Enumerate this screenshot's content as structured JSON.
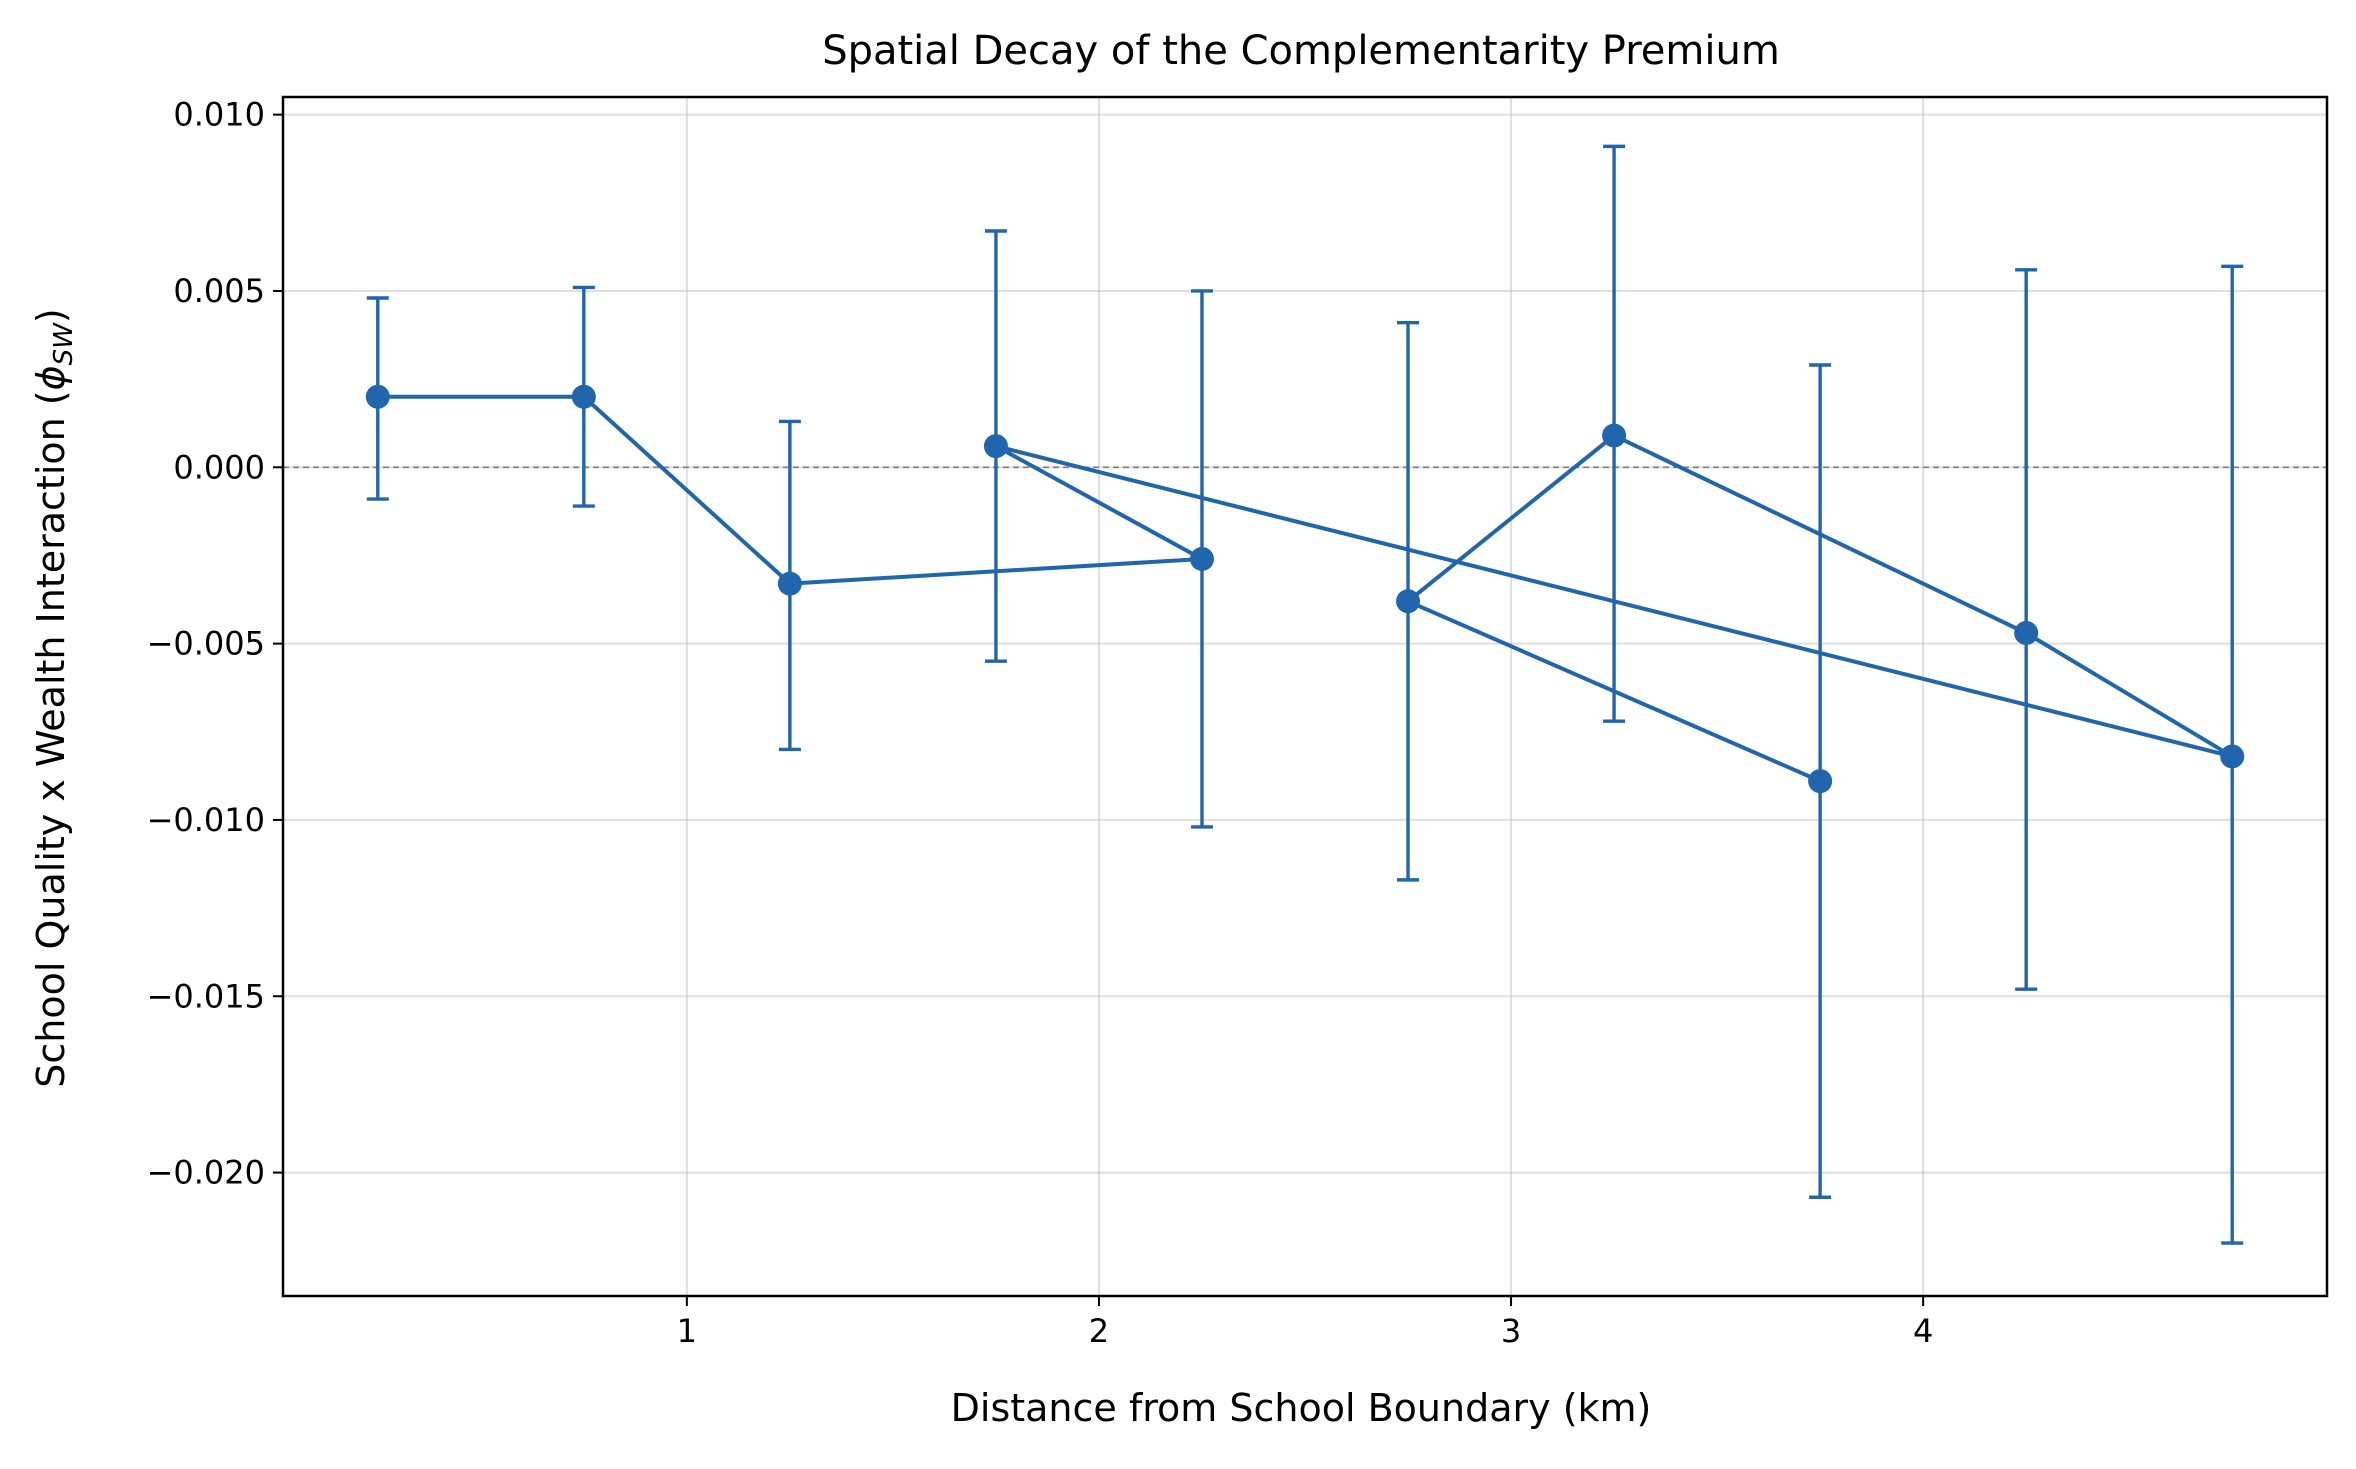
{
  "chart_data": {
    "type": "line",
    "title": "Spatial Decay of the Complementarity Premium",
    "xlabel": "Distance from School Boundary (km)",
    "ylabel_main": "School Quality x Wealth Interaction (",
    "ylabel_symbol": "ϕ",
    "ylabel_subscript": "SW",
    "ylabel_close": ")",
    "x_ticks": [
      1,
      2,
      3,
      4
    ],
    "x_tick_labels": [
      "1",
      "2",
      "3",
      "4"
    ],
    "y_ticks": [
      0.01,
      0.005,
      0.0,
      -0.005,
      -0.01,
      -0.015,
      -0.02
    ],
    "y_tick_labels": [
      "0.010",
      "0.005",
      "0.000",
      "−0.005",
      "−0.010",
      "−0.015",
      "−0.020"
    ],
    "xlim": [
      0.02,
      4.98
    ],
    "ylim": [
      -0.0235,
      0.0105
    ],
    "grid": true,
    "reference_line_y": 0,
    "series": [
      {
        "color": "#2166ac",
        "points": [
          {
            "x": 0.25,
            "y": 0.002,
            "lo": -0.0009,
            "hi": 0.0048
          },
          {
            "x": 0.75,
            "y": 0.002,
            "lo": -0.0011,
            "hi": 0.0051
          },
          {
            "x": 1.25,
            "y": -0.0033,
            "lo": -0.008,
            "hi": 0.0013
          },
          {
            "x": 1.75,
            "y": 0.0006,
            "lo": -0.0055,
            "hi": 0.0067
          },
          {
            "x": 2.25,
            "y": -0.0026,
            "lo": -0.0102,
            "hi": 0.005
          },
          {
            "x": 2.75,
            "y": -0.0038,
            "lo": -0.0117,
            "hi": 0.0041
          },
          {
            "x": 3.25,
            "y": 0.0009,
            "lo": -0.0072,
            "hi": 0.0091
          },
          {
            "x": 3.75,
            "y": -0.0089,
            "lo": -0.0207,
            "hi": 0.0029
          },
          {
            "x": 4.25,
            "y": -0.0047,
            "lo": -0.0148,
            "hi": 0.0056
          },
          {
            "x": 4.75,
            "y": -0.0082,
            "lo": -0.022,
            "hi": 0.0057
          }
        ],
        "line_order": [
          0,
          1,
          2,
          4,
          3,
          9,
          8,
          6,
          5,
          7
        ]
      }
    ]
  }
}
